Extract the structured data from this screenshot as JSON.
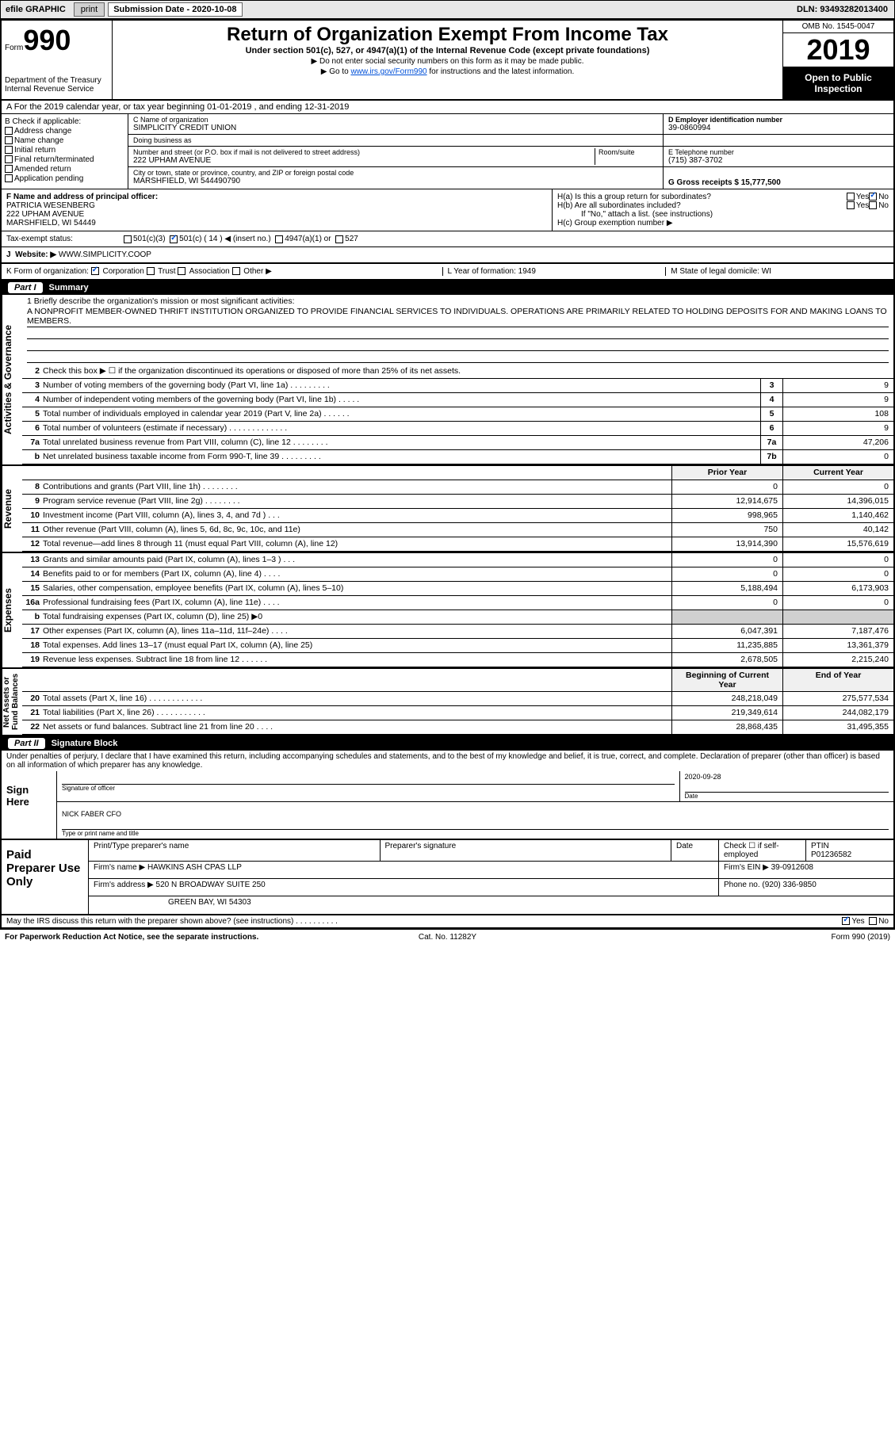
{
  "topbar": {
    "efile": "efile GRAPHIC",
    "print": "print",
    "sub_label": "Submission Date - 2020-10-08",
    "dln_label": "DLN: 93493282013400"
  },
  "header": {
    "form_word": "Form",
    "form_num": "990",
    "dept": "Department of the Treasury\nInternal Revenue Service",
    "title": "Return of Organization Exempt From Income Tax",
    "subtitle": "Under section 501(c), 527, or 4947(a)(1) of the Internal Revenue Code (except private foundations)",
    "note1": "▶ Do not enter social security numbers on this form as it may be made public.",
    "note2_pre": "▶ Go to ",
    "note2_link": "www.irs.gov/Form990",
    "note2_post": " for instructions and the latest information.",
    "omb": "OMB No. 1545-0047",
    "year": "2019",
    "open": "Open to Public Inspection"
  },
  "row_a": "A For the 2019 calendar year, or tax year beginning 01-01-2019   , and ending 12-31-2019",
  "col_b": {
    "label": "B Check if applicable:",
    "items": [
      "Address change",
      "Name change",
      "Initial return",
      "Final return/terminated",
      "Amended return",
      "Application pending"
    ]
  },
  "cd": {
    "c_name_lab": "C Name of organization",
    "c_name": "SIMPLICITY CREDIT UNION",
    "dba_lab": "Doing business as",
    "dba": "",
    "addr_lab": "Number and street (or P.O. box if mail is not delivered to street address)",
    "room_lab": "Room/suite",
    "addr": "222 UPHAM AVENUE",
    "city_lab": "City or town, state or province, country, and ZIP or foreign postal code",
    "city": "MARSHFIELD, WI  544490790",
    "d_lab": "D Employer identification number",
    "d_val": "39-0860994",
    "e_lab": "E Telephone number",
    "e_val": "(715) 387-3702",
    "g_lab": "G Gross receipts $ 15,777,500"
  },
  "f": {
    "lab": "F  Name and address of principal officer:",
    "name": "PATRICIA WESENBERG",
    "addr1": "222 UPHAM AVENUE",
    "addr2": "MARSHFIELD, WI  54449"
  },
  "h": {
    "a": "H(a)  Is this a group return for subordinates?",
    "a_yes": "Yes",
    "a_no": "No",
    "b": "H(b)  Are all subordinates included?",
    "b_yes": "Yes",
    "b_no": "No",
    "b_note": "If \"No,\" attach a list. (see instructions)",
    "c": "H(c)  Group exemption number ▶"
  },
  "tax": {
    "lab": "Tax-exempt status:",
    "c3": "501(c)(3)",
    "c": "501(c) ( 14 ) ◀ (insert no.)",
    "c4947": "4947(a)(1) or",
    "c527": "527"
  },
  "j": {
    "lab": "J",
    "web_lab": "Website: ▶",
    "web": "WWW.SIMPLICITY.COOP"
  },
  "klm": {
    "k": "K Form of organization:",
    "k_corp": "Corporation",
    "k_trust": "Trust",
    "k_assoc": "Association",
    "k_other": "Other ▶",
    "l": "L Year of formation: 1949",
    "m": "M State of legal domicile: WI"
  },
  "part1": {
    "num": "Part I",
    "title": "Summary"
  },
  "mission": {
    "lab1": "1  Briefly describe the organization's mission or most significant activities:",
    "text": "A NONPROFIT MEMBER-OWNED THRIFT INSTITUTION ORGANIZED TO PROVIDE FINANCIAL SERVICES TO INDIVIDUALS. OPERATIONS ARE PRIMARILY RELATED TO HOLDING DEPOSITS FOR AND MAKING LOANS TO MEMBERS."
  },
  "gov_rows": [
    {
      "n": "2",
      "t": "Check this box ▶ ☐ if the organization discontinued its operations or disposed of more than 25% of its net assets."
    },
    {
      "n": "3",
      "t": "Number of voting members of the governing body (Part VI, line 1a)  .   .   .   .   .   .   .   .   .",
      "box": "3",
      "v": "9"
    },
    {
      "n": "4",
      "t": "Number of independent voting members of the governing body (Part VI, line 1b)  .   .   .   .   .",
      "box": "4",
      "v": "9"
    },
    {
      "n": "5",
      "t": "Total number of individuals employed in calendar year 2019 (Part V, line 2a)  .   .   .   .   .   .",
      "box": "5",
      "v": "108"
    },
    {
      "n": "6",
      "t": "Total number of volunteers (estimate if necessary)   .   .   .   .   .   .   .   .   .   .   .   .   .",
      "box": "6",
      "v": "9"
    },
    {
      "n": "7a",
      "t": "Total unrelated business revenue from Part VIII, column (C), line 12   .   .   .   .   .   .   .   .",
      "box": "7a",
      "v": "47,206"
    },
    {
      "n": "b",
      "t": "Net unrelated business taxable income from Form 990-T, line 39   .   .   .   .   .   .   .   .   .",
      "box": "7b",
      "v": "0"
    }
  ],
  "rev_hdr": {
    "prior": "Prior Year",
    "cur": "Current Year"
  },
  "rev_rows": [
    {
      "n": "8",
      "t": "Contributions and grants (Part VIII, line 1h)   .   .   .   .   .   .   .   .",
      "p": "0",
      "c": "0"
    },
    {
      "n": "9",
      "t": "Program service revenue (Part VIII, line 2g)   .   .   .   .   .   .   .   .",
      "p": "12,914,675",
      "c": "14,396,015"
    },
    {
      "n": "10",
      "t": "Investment income (Part VIII, column (A), lines 3, 4, and 7d )   .   .   .",
      "p": "998,965",
      "c": "1,140,462"
    },
    {
      "n": "11",
      "t": "Other revenue (Part VIII, column (A), lines 5, 6d, 8c, 9c, 10c, and 11e)",
      "p": "750",
      "c": "40,142"
    },
    {
      "n": "12",
      "t": "Total revenue—add lines 8 through 11 (must equal Part VIII, column (A), line 12)",
      "p": "13,914,390",
      "c": "15,576,619"
    }
  ],
  "exp_rows": [
    {
      "n": "13",
      "t": "Grants and similar amounts paid (Part IX, column (A), lines 1–3 )   .   .   .",
      "p": "0",
      "c": "0"
    },
    {
      "n": "14",
      "t": "Benefits paid to or for members (Part IX, column (A), line 4)   .   .   .   .",
      "p": "0",
      "c": "0"
    },
    {
      "n": "15",
      "t": "Salaries, other compensation, employee benefits (Part IX, column (A), lines 5–10)",
      "p": "5,188,494",
      "c": "6,173,903"
    },
    {
      "n": "16a",
      "t": "Professional fundraising fees (Part IX, column (A), line 11e)   .   .   .   .",
      "p": "0",
      "c": "0"
    },
    {
      "n": "b",
      "t": "Total fundraising expenses (Part IX, column (D), line 25) ▶0",
      "p": "",
      "c": "",
      "shade": true
    },
    {
      "n": "17",
      "t": "Other expenses (Part IX, column (A), lines 11a–11d, 11f–24e)   .   .   .   .",
      "p": "6,047,391",
      "c": "7,187,476"
    },
    {
      "n": "18",
      "t": "Total expenses. Add lines 13–17 (must equal Part IX, column (A), line 25)",
      "p": "11,235,885",
      "c": "13,361,379"
    },
    {
      "n": "19",
      "t": "Revenue less expenses. Subtract line 18 from line 12   .   .   .   .   .   .",
      "p": "2,678,505",
      "c": "2,215,240"
    }
  ],
  "na_hdr": {
    "b": "Beginning of Current Year",
    "e": "End of Year"
  },
  "na_rows": [
    {
      "n": "20",
      "t": "Total assets (Part X, line 16)   .   .   .   .   .   .   .   .   .   .   .   .",
      "p": "248,218,049",
      "c": "275,577,534"
    },
    {
      "n": "21",
      "t": "Total liabilities (Part X, line 26)   .   .   .   .   .   .   .   .   .   .   .",
      "p": "219,349,614",
      "c": "244,082,179"
    },
    {
      "n": "22",
      "t": "Net assets or fund balances. Subtract line 21 from line 20   .   .   .   .",
      "p": "28,868,435",
      "c": "31,495,355"
    }
  ],
  "side": {
    "gov": "Activities & Governance",
    "rev": "Revenue",
    "exp": "Expenses",
    "na": "Net Assets or\nFund Balances"
  },
  "part2": {
    "num": "Part II",
    "title": "Signature Block"
  },
  "sig": {
    "declare": "Under penalties of perjury, I declare that I have examined this return, including accompanying schedules and statements, and to the best of my knowledge and belief, it is true, correct, and complete. Declaration of preparer (other than officer) is based on all information of which preparer has any knowledge.",
    "sign_here": "Sign Here",
    "sig_officer": "Signature of officer",
    "date": "Date",
    "date_val": "2020-09-28",
    "name": "NICK FABER CFO",
    "name_lab": "Type or print name and title"
  },
  "prep": {
    "label": "Paid Preparer Use Only",
    "pt_name_lab": "Print/Type preparer's name",
    "pt_sig_lab": "Preparer's signature",
    "pt_date_lab": "Date",
    "pt_chk": "Check ☐ if self-employed",
    "ptin_lab": "PTIN",
    "ptin": "P01236582",
    "firm_name_lab": "Firm's name   ▶",
    "firm_name": "HAWKINS ASH CPAS LLP",
    "firm_ein_lab": "Firm's EIN ▶",
    "firm_ein": "39-0912608",
    "firm_addr_lab": "Firm's address ▶",
    "firm_addr1": "520 N BROADWAY SUITE 250",
    "firm_addr2": "GREEN BAY, WI  54303",
    "phone_lab": "Phone no.",
    "phone": "(920) 336-9850"
  },
  "discuss": {
    "q": "May the IRS discuss this return with the preparer shown above? (see instructions)   .   .   .   .   .   .   .   .   .   .",
    "yes": "Yes",
    "no": "No"
  },
  "foot": {
    "l": "For Paperwork Reduction Act Notice, see the separate instructions.",
    "c": "Cat. No. 11282Y",
    "r": "Form 990 (2019)"
  }
}
